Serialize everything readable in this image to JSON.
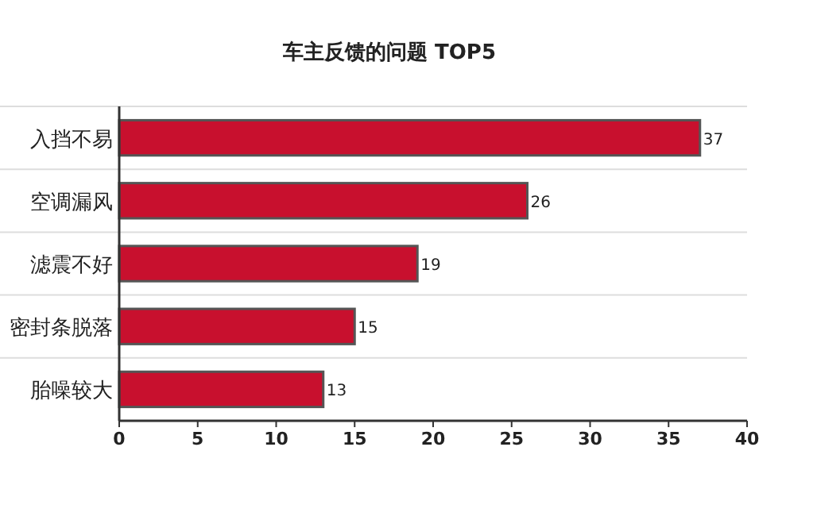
{
  "chart_data": {
    "type": "bar",
    "orientation": "horizontal",
    "title": "车主反馈的问题 TOP5",
    "categories": [
      "入挡不易",
      "空调漏风",
      "滤震不好",
      "密封条脱落",
      "胎噪较大"
    ],
    "values": [
      37,
      26,
      19,
      15,
      13
    ],
    "color": "#c8102e",
    "xlim": [
      0,
      40
    ],
    "xticks": [
      0,
      5,
      10,
      15,
      20,
      25,
      30,
      35,
      40
    ],
    "grid": "y",
    "data_labels": true
  }
}
